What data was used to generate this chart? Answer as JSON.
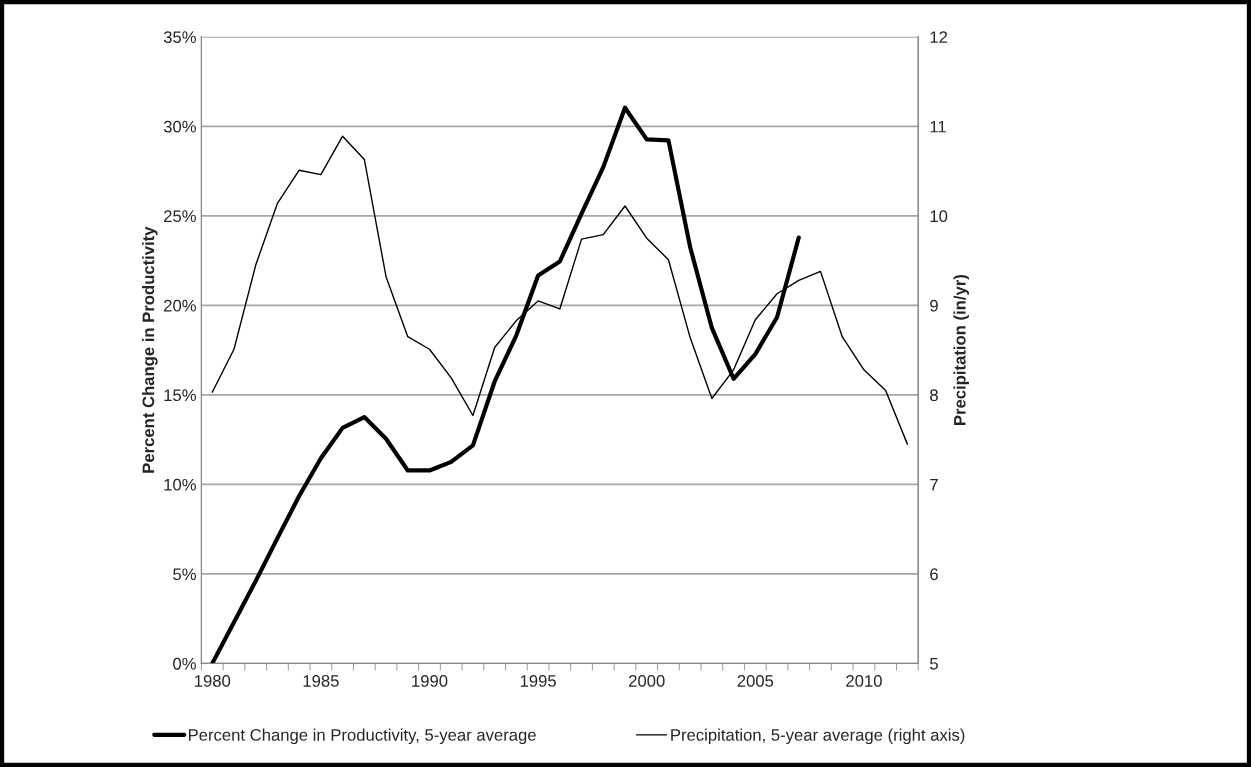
{
  "chart_data": {
    "type": "line",
    "ylabel": "Percent Change in Productivity",
    "y2label": "Precipitation (in/yr)",
    "categories": [
      "1980",
      null,
      null,
      null,
      null,
      "1985",
      null,
      null,
      null,
      null,
      "1990",
      null,
      null,
      null,
      null,
      "1995",
      null,
      null,
      null,
      null,
      "2000",
      null,
      null,
      null,
      null,
      "2005",
      null,
      null,
      null,
      null,
      "2010",
      null,
      null
    ],
    "series": [
      {
        "name": "Percent Change in Productivity, 5-year average",
        "color": "#000000",
        "values": [
          0,
          2.3,
          4.6,
          7.0,
          9.35,
          11.46,
          13.16,
          13.76,
          12.55,
          10.78,
          10.78,
          11.26,
          12.18,
          15.75,
          18.33,
          21.67,
          22.45,
          25.12,
          27.72,
          31.04,
          29.27,
          29.22,
          23.25,
          18.74,
          15.9,
          17.28,
          19.34,
          23.79,
          null,
          null,
          null,
          null,
          null
        ]
      },
      {
        "name": "Precipitation, 5-year average (right axis)",
        "color": "#000000",
        "axis": "y2",
        "values": [
          8.03,
          8.51,
          9.45,
          10.14,
          10.51,
          10.46,
          10.89,
          10.63,
          9.32,
          8.65,
          8.51,
          8.19,
          7.77,
          8.53,
          8.83,
          9.05,
          8.96,
          9.74,
          9.79,
          10.11,
          9.75,
          9.51,
          8.64,
          7.96,
          8.28,
          8.84,
          9.13,
          9.28,
          9.38,
          8.65,
          8.28,
          8.05,
          7.45
        ]
      }
    ],
    "ylim": [
      0,
      35
    ],
    "yticks": [
      {
        "value": 0,
        "label": "0%"
      },
      {
        "value": 5,
        "label": "5%"
      },
      {
        "value": 10,
        "label": "10%"
      },
      {
        "value": 15,
        "label": "15%"
      },
      {
        "value": 20,
        "label": "20%"
      },
      {
        "value": 25,
        "label": "25%"
      },
      {
        "value": 30,
        "label": "30%"
      },
      {
        "value": 35,
        "label": "35%"
      }
    ],
    "y2lim": [
      5,
      12
    ],
    "y2ticks": [
      5,
      6,
      7,
      8,
      9,
      10,
      11,
      12
    ],
    "grid": "y",
    "legend": "bottom",
    "marker": "none",
    "line_style": "solid"
  }
}
